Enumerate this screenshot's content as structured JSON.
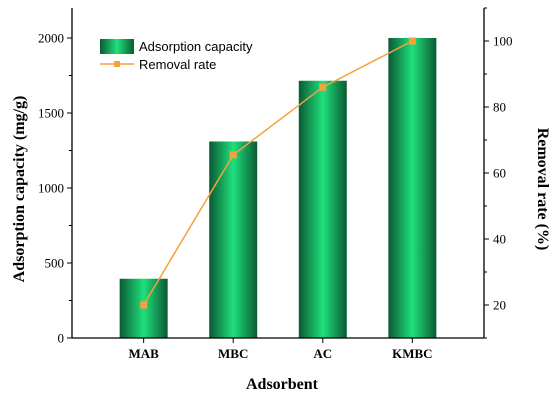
{
  "chart_data": {
    "type": "bar",
    "xlabel": "Adsorbent",
    "ylabel": "Adsorption capacity (mg/g)",
    "y2label": "Removal rate (%)",
    "categories": [
      "MAB",
      "MBC",
      "AC",
      "KMBC"
    ],
    "ylim": [
      0,
      2200
    ],
    "y2lim": [
      10,
      110
    ],
    "yticks": [
      0,
      500,
      1000,
      1500,
      2000
    ],
    "y2ticks": [
      20,
      40,
      60,
      80,
      100
    ],
    "grid": false,
    "legend_position": "top-left",
    "series": [
      {
        "name": "Adsorption capacity",
        "kind": "bar",
        "axis": "left",
        "color": "#0fa85a",
        "values": [
          395,
          1310,
          1715,
          2000
        ]
      },
      {
        "name": "Removal rate",
        "kind": "line",
        "marker": "square",
        "axis": "right",
        "color": "#f5a23c",
        "values": [
          20,
          65.5,
          86,
          100
        ]
      }
    ]
  }
}
